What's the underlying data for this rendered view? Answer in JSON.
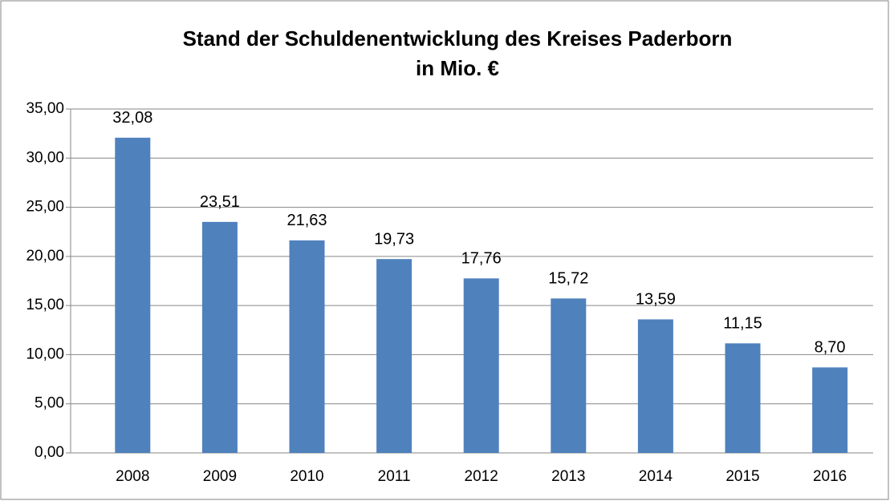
{
  "chart_data": {
    "type": "bar",
    "title": [
      "Stand der Schuldenentwicklung des Kreises Paderborn",
      "in Mio. €"
    ],
    "categories": [
      "2008",
      "2009",
      "2010",
      "2011",
      "2012",
      "2013",
      "2014",
      "2015",
      "2016"
    ],
    "values": [
      32.08,
      23.51,
      21.63,
      19.73,
      17.76,
      15.72,
      13.59,
      11.15,
      8.7
    ],
    "value_labels": [
      "32,08",
      "23,51",
      "21,63",
      "19,73",
      "17,76",
      "15,72",
      "13,59",
      "11,15",
      "8,70"
    ],
    "color": "#4f81bd",
    "ylim": [
      0,
      35
    ],
    "yticks": [
      {
        "value": 0,
        "label": "0,00"
      },
      {
        "value": 5,
        "label": "5,00"
      },
      {
        "value": 10,
        "label": "10,00"
      },
      {
        "value": 15,
        "label": "15,00"
      },
      {
        "value": 20,
        "label": "20,00"
      },
      {
        "value": 25,
        "label": "25,00"
      },
      {
        "value": 30,
        "label": "30,00"
      },
      {
        "value": 35,
        "label": "35,00"
      }
    ],
    "grid": true
  }
}
